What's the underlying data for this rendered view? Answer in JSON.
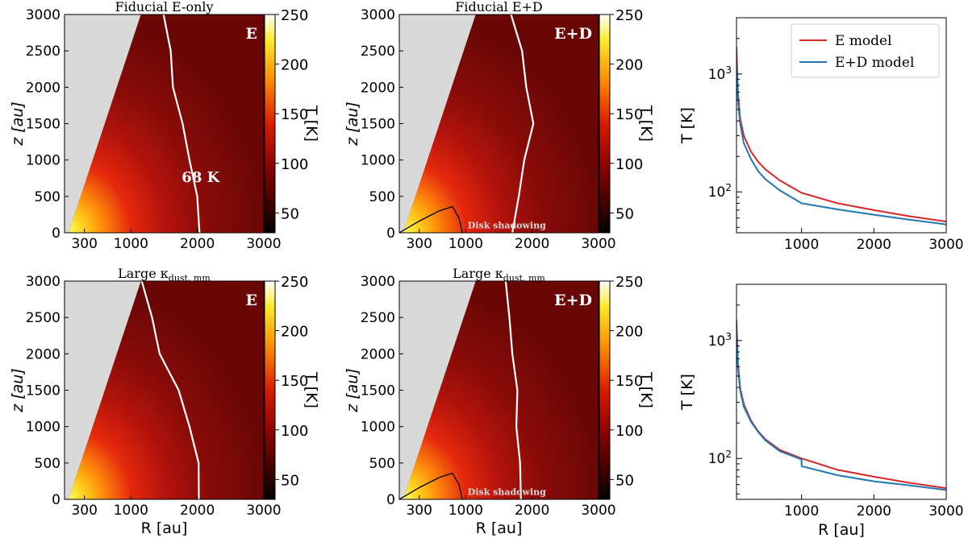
{
  "colors": {
    "excluded_region": "#d9d9d9",
    "iso_contour": "#ffffff",
    "disk_shadow_line": "#000000",
    "e_model": "#d62728",
    "ed_model": "#1f77b4"
  },
  "colorbar": {
    "label": "T [K]",
    "ticks": [
      "50",
      "100",
      "150",
      "200",
      "250"
    ],
    "tick_values": [
      50,
      100,
      150,
      200,
      250
    ],
    "range": [
      30,
      250
    ]
  },
  "maps": [
    {
      "title": "Fiducial E-only",
      "tag": "E",
      "contour_label": "68 K",
      "shadow_label": "",
      "xlabel": "R [au]",
      "ylabel": "z [au]",
      "xticks": [
        "300",
        "1000",
        "2000",
        "3000"
      ],
      "xtick_values": [
        300,
        1000,
        2000,
        3000
      ],
      "yticks": [
        "0",
        "500",
        "1000",
        "1500",
        "2000",
        "2500",
        "3000"
      ],
      "ytick_values": [
        0,
        500,
        1000,
        1500,
        2000,
        2500,
        3000
      ],
      "show_xlabel": false
    },
    {
      "title": "Fiducial E+D",
      "tag": "E+D",
      "contour_label": "",
      "shadow_label": "Disk shadowing",
      "xlabel": "R [au]",
      "ylabel": "z [au]",
      "xticks": [
        "300",
        "1000",
        "2000",
        "3000"
      ],
      "xtick_values": [
        300,
        1000,
        2000,
        3000
      ],
      "yticks": [
        "0",
        "500",
        "1000",
        "1500",
        "2000",
        "2500",
        "3000"
      ],
      "ytick_values": [
        0,
        500,
        1000,
        1500,
        2000,
        2500,
        3000
      ],
      "show_xlabel": false
    },
    {
      "title": "Large κdust, mm",
      "title_main": "Large κ",
      "title_sub": "dust, mm",
      "tag": "E",
      "contour_label": "",
      "shadow_label": "",
      "xlabel": "R [au]",
      "ylabel": "z [au]",
      "xticks": [
        "300",
        "1000",
        "2000",
        "3000"
      ],
      "xtick_values": [
        300,
        1000,
        2000,
        3000
      ],
      "yticks": [
        "0",
        "500",
        "1000",
        "1500",
        "2000",
        "2500",
        "3000"
      ],
      "ytick_values": [
        0,
        500,
        1000,
        1500,
        2000,
        2500,
        3000
      ],
      "show_xlabel": true
    },
    {
      "title": "Large κdust, mm",
      "title_main": "Large κ",
      "title_sub": "dust, mm",
      "tag": "E+D",
      "contour_label": "",
      "shadow_label": "Disk shadowing",
      "xlabel": "R [au]",
      "ylabel": "z [au]",
      "xticks": [
        "300",
        "1000",
        "2000",
        "3000"
      ],
      "xtick_values": [
        300,
        1000,
        2000,
        3000
      ],
      "yticks": [
        "0",
        "500",
        "1000",
        "1500",
        "2000",
        "2500",
        "3000"
      ],
      "ytick_values": [
        0,
        500,
        1000,
        1500,
        2000,
        2500,
        3000
      ],
      "show_xlabel": true
    }
  ],
  "chart_data": [
    {
      "type": "heatmap",
      "title": "Fiducial E-only",
      "xlabel": "R [au]",
      "ylabel": "z [au]",
      "xlim": [
        0,
        3000
      ],
      "ylim": [
        0,
        3000
      ],
      "colorbar_label": "T [K]",
      "clim": [
        30,
        250
      ],
      "annotations": [
        "E",
        "68 K"
      ],
      "contour_68K": {
        "z": [
          0,
          500,
          1000,
          1500,
          2000,
          2500,
          3000
        ],
        "R": [
          2050,
          1980,
          1900,
          1760,
          1650,
          1580,
          1510
        ]
      }
    },
    {
      "type": "heatmap",
      "title": "Fiducial E+D",
      "xlabel": "R [au]",
      "ylabel": "z [au]",
      "xlim": [
        0,
        3000
      ],
      "ylim": [
        0,
        3000
      ],
      "colorbar_label": "T [K]",
      "clim": [
        30,
        250
      ],
      "annotations": [
        "E+D",
        "Disk shadowing"
      ],
      "contour_68K": {
        "z": [
          0,
          500,
          1000,
          1500,
          2000,
          2500,
          3000
        ],
        "R": [
          1720,
          1780,
          1900,
          2000,
          1930,
          1830,
          1700
        ]
      },
      "disk_shadow": {
        "R": [
          0,
          300,
          600,
          800,
          900,
          950
        ],
        "z": [
          0,
          160,
          300,
          360,
          200,
          0
        ]
      }
    },
    {
      "type": "heatmap",
      "title": "Large κdust, mm",
      "xlabel": "R [au]",
      "ylabel": "z [au]",
      "xlim": [
        0,
        3000
      ],
      "ylim": [
        0,
        3000
      ],
      "colorbar_label": "T [K]",
      "clim": [
        30,
        250
      ],
      "annotations": [
        "E"
      ],
      "contour_68K": {
        "z": [
          0,
          500,
          1000,
          1500,
          2000,
          2500,
          3000
        ],
        "R": [
          2040,
          2000,
          1900,
          1700,
          1450,
          1300,
          1180
        ]
      }
    },
    {
      "type": "heatmap",
      "title": "Large κdust, mm",
      "xlabel": "R [au]",
      "ylabel": "z [au]",
      "xlim": [
        0,
        3000
      ],
      "ylim": [
        0,
        3000
      ],
      "colorbar_label": "T [K]",
      "clim": [
        30,
        250
      ],
      "annotations": [
        "E+D",
        "Disk shadowing"
      ],
      "contour_68K": {
        "z": [
          0,
          500,
          1000,
          1500,
          2000,
          2500,
          3000
        ],
        "R": [
          1850,
          1800,
          1780,
          1760,
          1720,
          1640,
          1620
        ]
      },
      "disk_shadow": {
        "R": [
          0,
          300,
          600,
          800,
          900,
          950
        ],
        "z": [
          0,
          160,
          300,
          360,
          200,
          0
        ]
      }
    },
    {
      "type": "line",
      "title": "",
      "xlabel": "R [au]",
      "ylabel": "T [K]",
      "yscale": "log",
      "xlim": [
        100,
        3000
      ],
      "ylim": [
        45,
        3000
      ],
      "xticks": [
        "1000",
        "2000",
        "3000"
      ],
      "yticks": [
        "10^2",
        "10^3"
      ],
      "legend": {
        "placement": "top-right",
        "entries": [
          "E model",
          "E+D model"
        ]
      },
      "series": [
        {
          "name": "E model",
          "x": [
            100,
            120,
            150,
            200,
            300,
            400,
            500,
            700,
            1000,
            1500,
            2000,
            2500,
            3000
          ],
          "y": [
            1700,
            700,
            420,
            300,
            220,
            180,
            155,
            125,
            98,
            80,
            70,
            62,
            56
          ]
        },
        {
          "name": "E+D model",
          "x": [
            100,
            120,
            150,
            200,
            300,
            400,
            500,
            700,
            1000,
            1500,
            2000,
            2500,
            3000
          ],
          "y": [
            1400,
            600,
            380,
            260,
            190,
            150,
            128,
            103,
            80,
            71,
            64,
            58,
            53
          ]
        }
      ]
    },
    {
      "type": "line",
      "title": "",
      "xlabel": "R [au]",
      "ylabel": "T [K]",
      "yscale": "log",
      "xlim": [
        100,
        3000
      ],
      "ylim": [
        45,
        3000
      ],
      "xticks": [
        "1000",
        "2000",
        "3000"
      ],
      "yticks": [
        "10^2",
        "10^3"
      ],
      "series": [
        {
          "name": "E model",
          "x": [
            100,
            120,
            150,
            200,
            300,
            400,
            500,
            700,
            1000,
            1500,
            2000,
            2500,
            3000
          ],
          "y": [
            1500,
            650,
            400,
            290,
            210,
            170,
            145,
            118,
            100,
            80,
            70,
            62,
            56
          ]
        },
        {
          "name": "E+D model",
          "x": [
            100,
            120,
            150,
            200,
            300,
            400,
            500,
            700,
            999,
            1001,
            1500,
            2000,
            2500,
            3000
          ],
          "y": [
            1300,
            600,
            380,
            275,
            205,
            168,
            142,
            115,
            98,
            86,
            72,
            64,
            59,
            54
          ]
        }
      ]
    }
  ]
}
